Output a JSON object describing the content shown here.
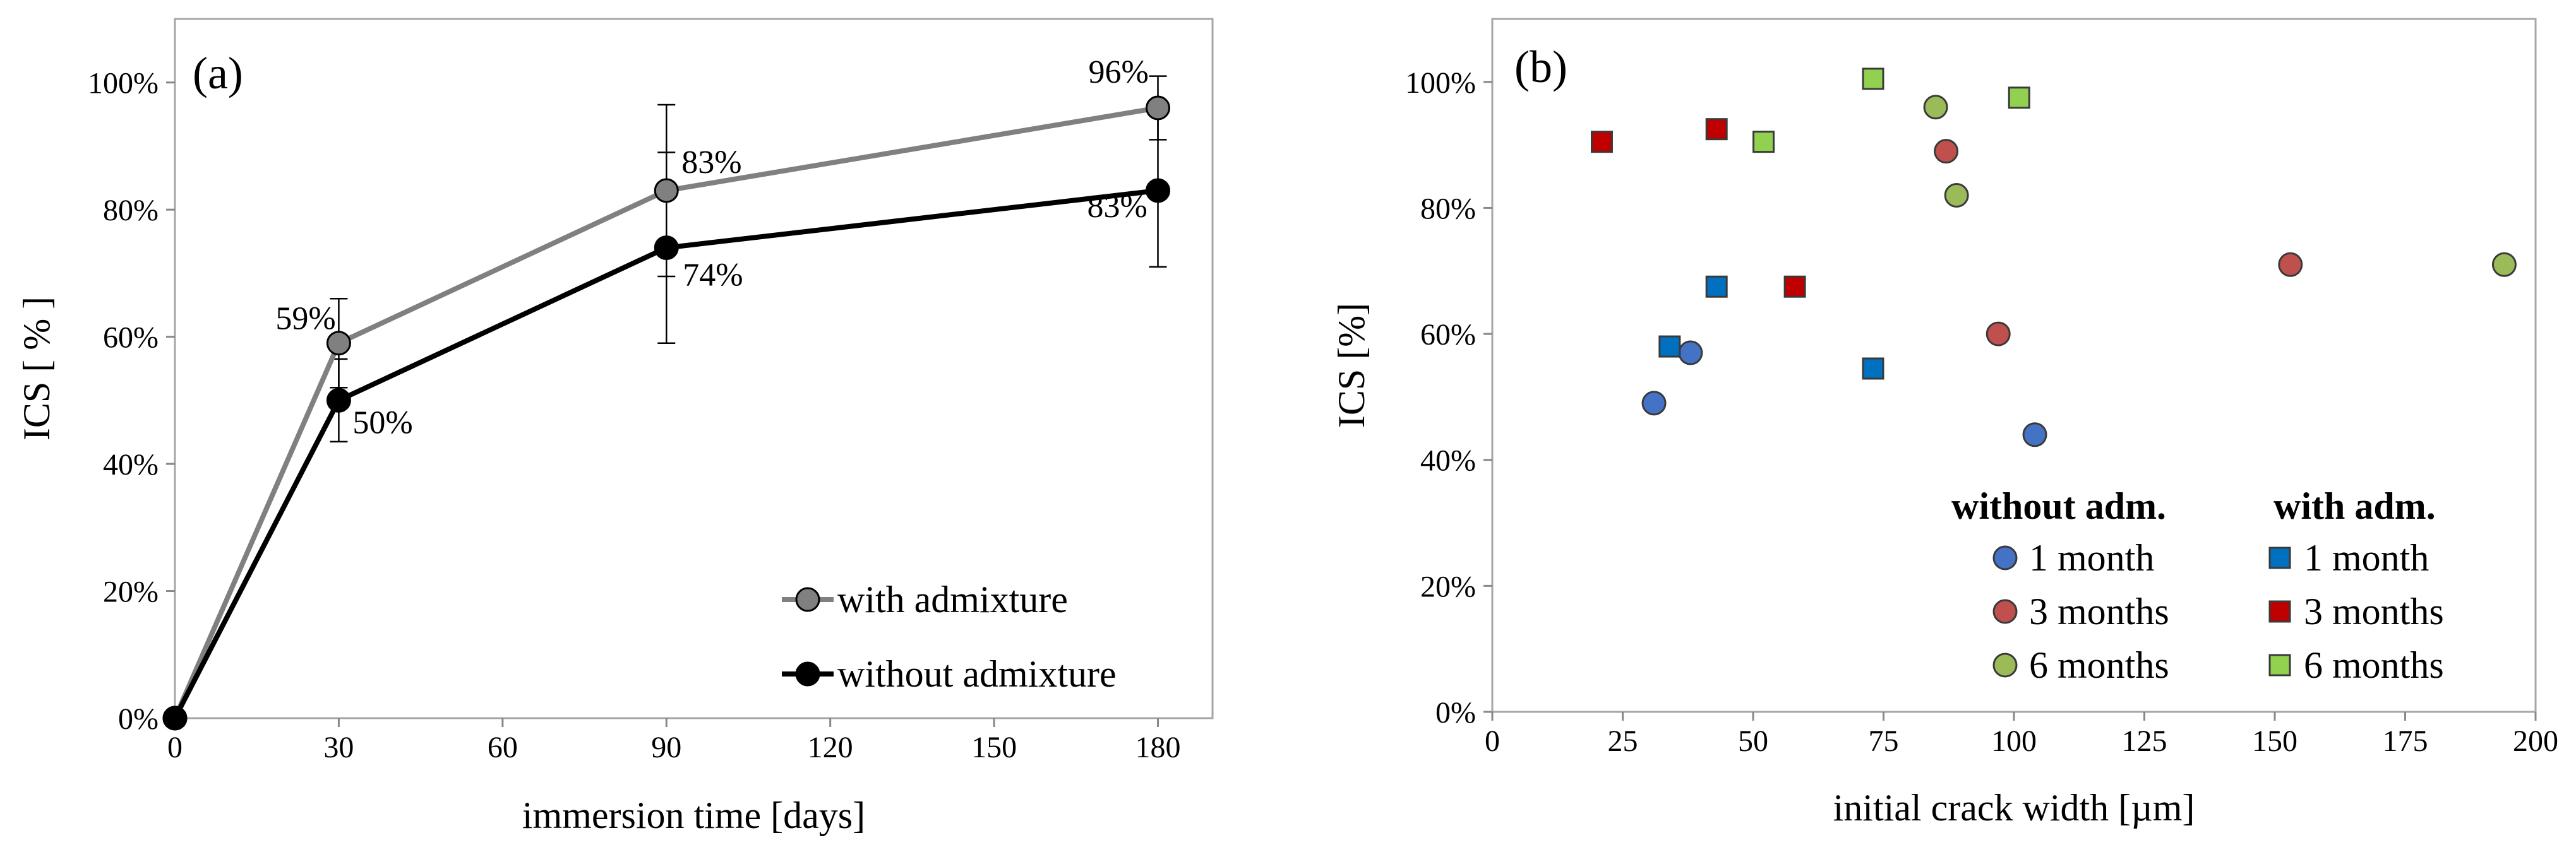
{
  "chart_data": [
    {
      "type": "line",
      "panel_label": "(a)",
      "xlabel": "immersion time [days]",
      "ylabel": "ICS [ % ]",
      "xlim": [
        0,
        190
      ],
      "ylim": [
        0,
        1.1
      ],
      "x_ticks": [
        0,
        30,
        60,
        90,
        120,
        150,
        180
      ],
      "y_ticks": [
        0,
        0.2,
        0.4,
        0.6,
        0.8,
        1.0
      ],
      "x_tick_labels": [
        "0",
        "30",
        "60",
        "90",
        "120",
        "150",
        "180"
      ],
      "y_tick_labels": [
        "0%",
        "20%",
        "40%",
        "60%",
        "80%",
        "100%"
      ],
      "series": [
        {
          "name": "with admixture",
          "color": "#808080",
          "marker_fill": "#808080",
          "x": [
            0,
            30,
            90,
            180
          ],
          "y": [
            0,
            0.59,
            0.83,
            0.96
          ],
          "err": [
            0,
            0.07,
            0.135,
            0.05
          ],
          "labels": [
            "",
            "59%",
            "83%",
            "96%"
          ]
        },
        {
          "name": "without admixture",
          "color": "#000000",
          "marker_fill": "#000000",
          "x": [
            0,
            30,
            90,
            180
          ],
          "y": [
            0,
            0.5,
            0.74,
            0.83
          ],
          "err": [
            0,
            0.065,
            0.15,
            0.12
          ],
          "labels": [
            "",
            "50%",
            "74%",
            "83%"
          ]
        }
      ],
      "legend": [
        "with admixture",
        "without admixture"
      ]
    },
    {
      "type": "scatter",
      "panel_label": "(b)",
      "xlabel": "initial crack width [µm]",
      "ylabel": "ICS [%]",
      "xlim": [
        0,
        200
      ],
      "ylim": [
        0,
        1.1
      ],
      "x_ticks": [
        0,
        25,
        50,
        75,
        100,
        125,
        150,
        175,
        200
      ],
      "y_ticks": [
        0,
        0.2,
        0.4,
        0.6,
        0.8,
        1.0
      ],
      "x_tick_labels": [
        "0",
        "25",
        "50",
        "75",
        "100",
        "125",
        "150",
        "175",
        "200"
      ],
      "y_tick_labels": [
        "0%",
        "20%",
        "40%",
        "60%",
        "80%",
        "100%"
      ],
      "legend_headers": [
        "without adm.",
        "with adm."
      ],
      "series": [
        {
          "name": "1 month",
          "group": "without adm.",
          "marker": "circle",
          "color": "#4472C4",
          "x": [
            31,
            38,
            104
          ],
          "y": [
            0.49,
            0.57,
            0.44
          ]
        },
        {
          "name": "3 months",
          "group": "without adm.",
          "marker": "circle",
          "color": "#C0504D",
          "x": [
            87,
            97,
            153
          ],
          "y": [
            0.89,
            0.6,
            0.71
          ]
        },
        {
          "name": "6 months",
          "group": "without adm.",
          "marker": "circle",
          "color": "#9BBB59",
          "x": [
            85,
            89,
            194
          ],
          "y": [
            0.96,
            0.82,
            0.71
          ]
        },
        {
          "name": "1 month",
          "group": "with adm.",
          "marker": "square",
          "color": "#0070C0",
          "x": [
            34,
            43,
            73
          ],
          "y": [
            0.58,
            0.675,
            0.545
          ]
        },
        {
          "name": "3 months",
          "group": "with adm.",
          "marker": "square",
          "color": "#C00000",
          "x": [
            21,
            43,
            58
          ],
          "y": [
            0.905,
            0.925,
            0.675
          ]
        },
        {
          "name": "6 months",
          "group": "with adm.",
          "marker": "square",
          "color": "#92D050",
          "x": [
            52,
            73,
            101
          ],
          "y": [
            0.905,
            1.005,
            0.975
          ]
        }
      ]
    }
  ]
}
